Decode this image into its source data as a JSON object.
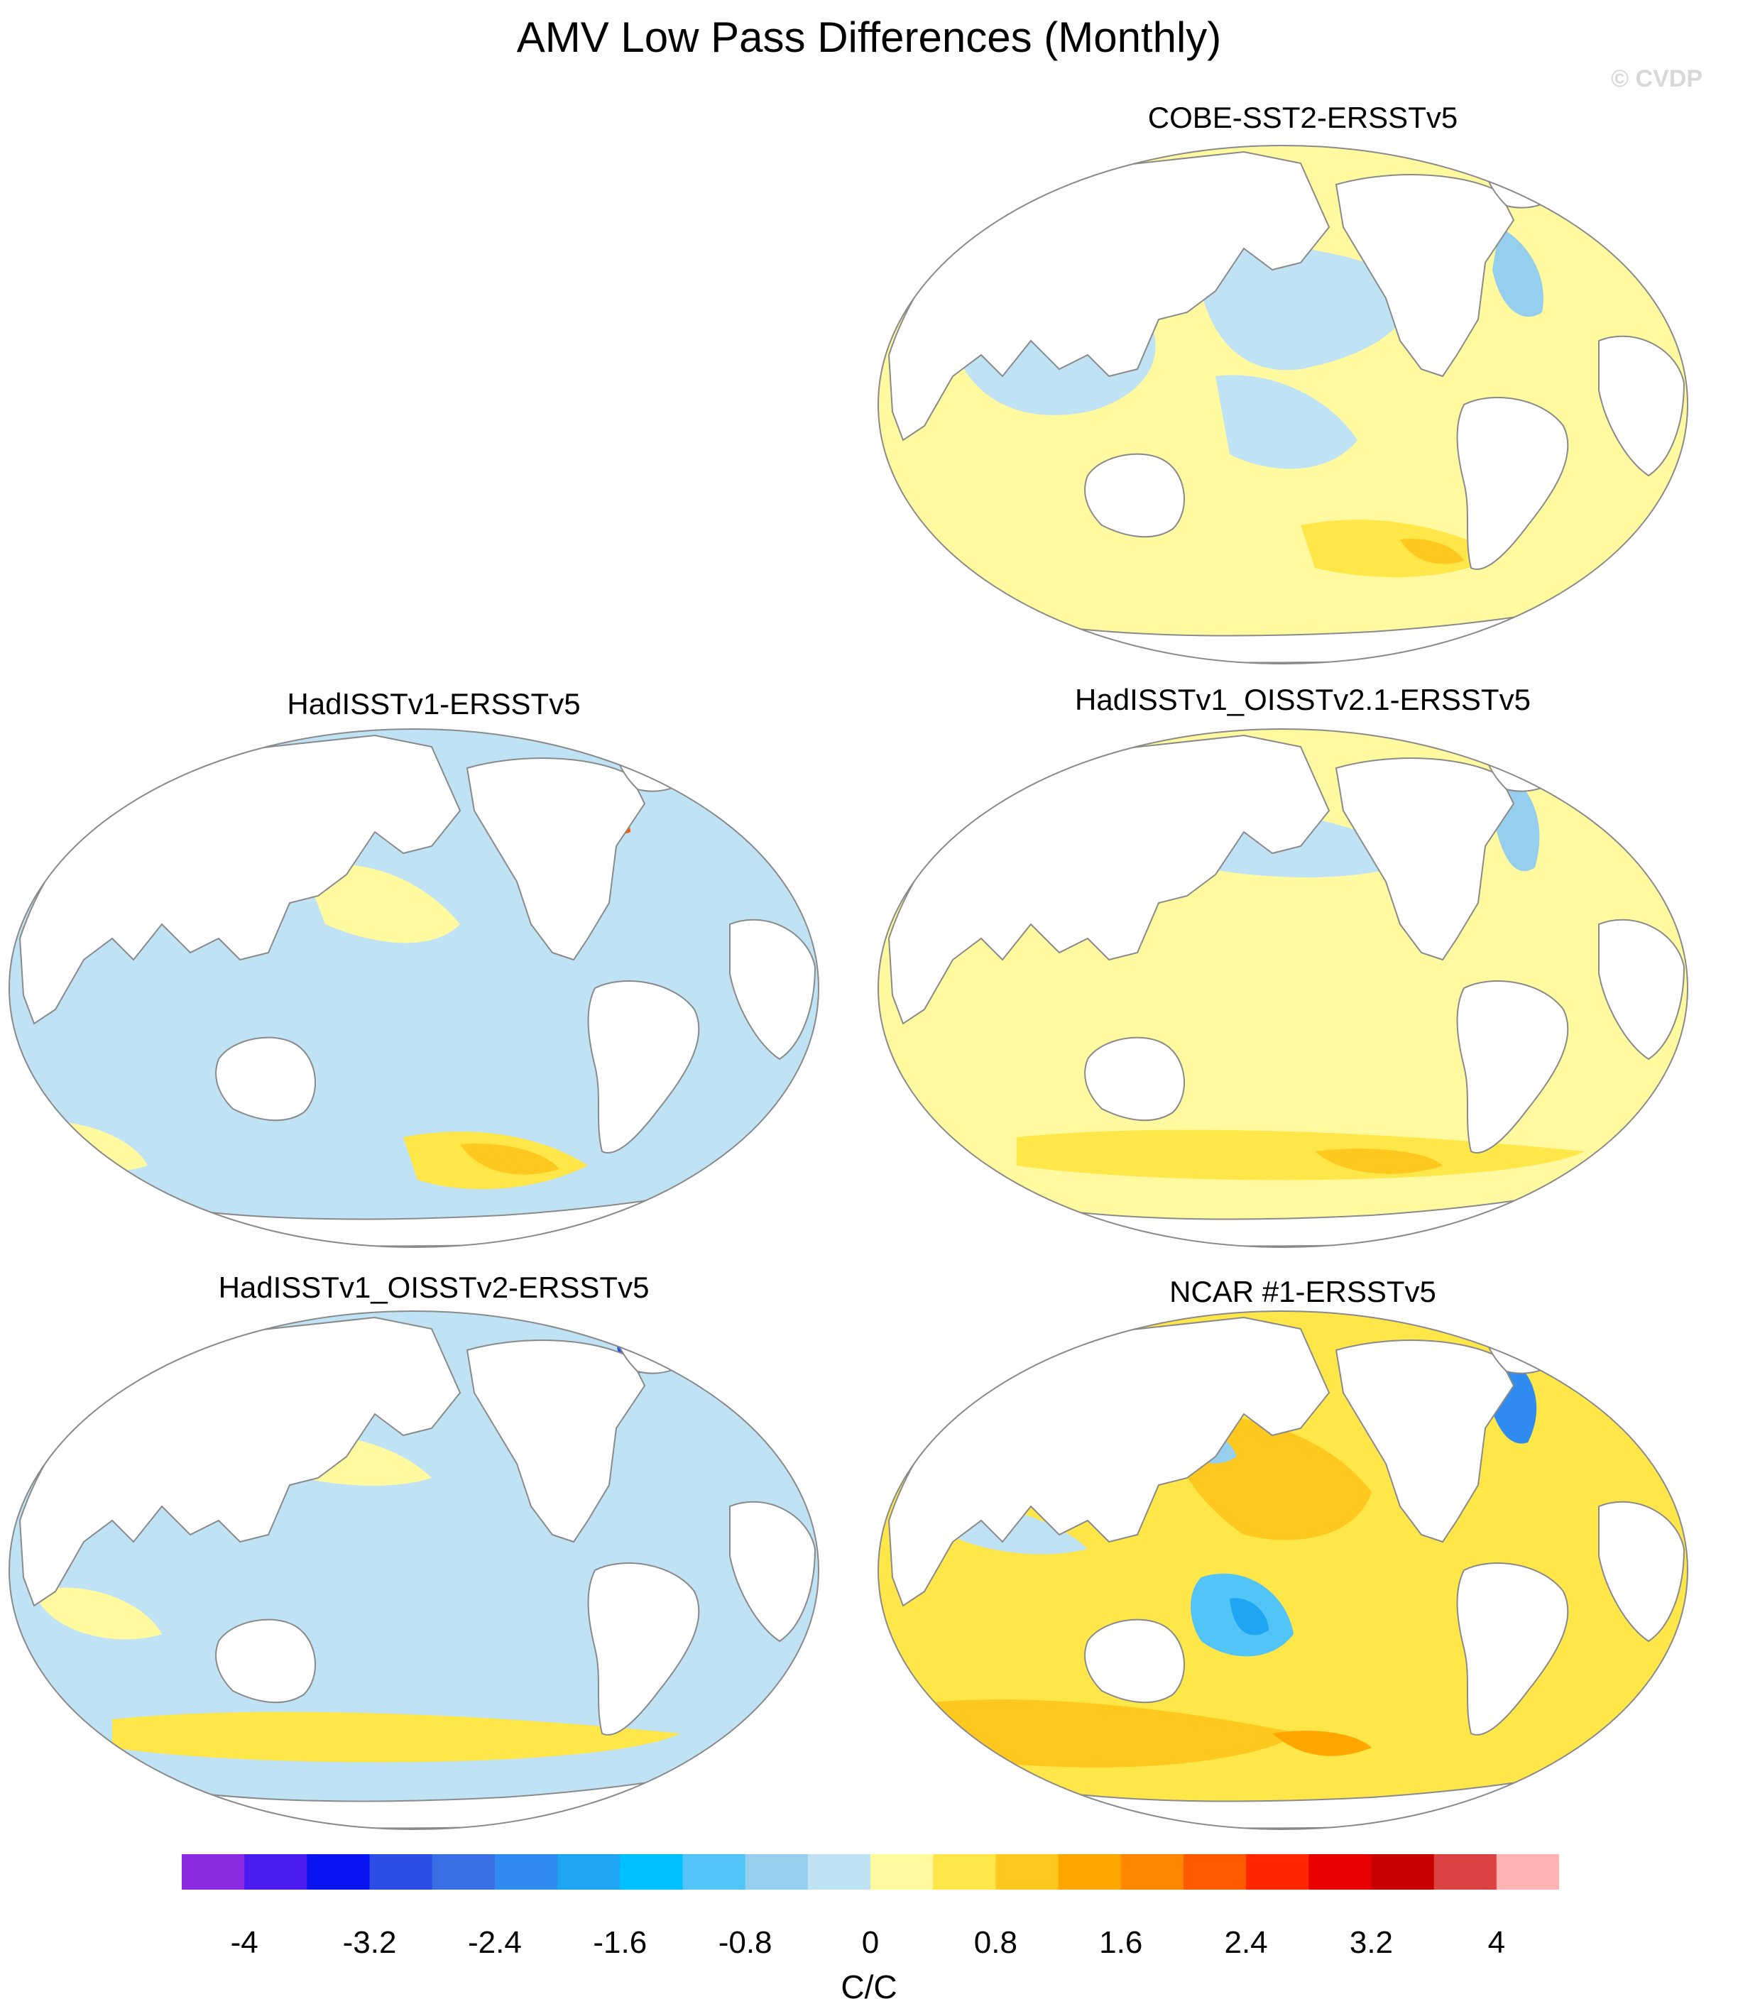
{
  "title": "AMV Low Pass Differences (Monthly)",
  "watermark": "© CVDP",
  "panels": [
    {
      "id": "cobe",
      "title": "COBE-SST2-ERSSTv5"
    },
    {
      "id": "had1",
      "title": "HadISSTv1-ERSSTv5"
    },
    {
      "id": "had21",
      "title": "HadISSTv1_OISSTv2.1-ERSSTv5"
    },
    {
      "id": "had2",
      "title": "HadISSTv1_OISSTv2-ERSSTv5"
    },
    {
      "id": "ncar",
      "title": "NCAR #1-ERSSTv5"
    }
  ],
  "colorbar": {
    "units": "C/C",
    "labels": [
      "-4",
      "-3.2",
      "-2.4",
      "-1.6",
      "-0.8",
      "0",
      "0.8",
      "1.6",
      "2.4",
      "3.2",
      "4"
    ],
    "colors": [
      "#8a2be2",
      "#4b1bef",
      "#0a14f0",
      "#2c4ee6",
      "#3a6fe3",
      "#2f8bf0",
      "#1ea6f3",
      "#00c0ff",
      "#52c4f5",
      "#96ceee",
      "#bfe2f5",
      "#fffaa0",
      "#ffe74a",
      "#ffc81f",
      "#ffa600",
      "#ff8700",
      "#ff5a00",
      "#ff2600",
      "#e80000",
      "#c80000",
      "#db4242",
      "#ffb3b3"
    ]
  }
}
